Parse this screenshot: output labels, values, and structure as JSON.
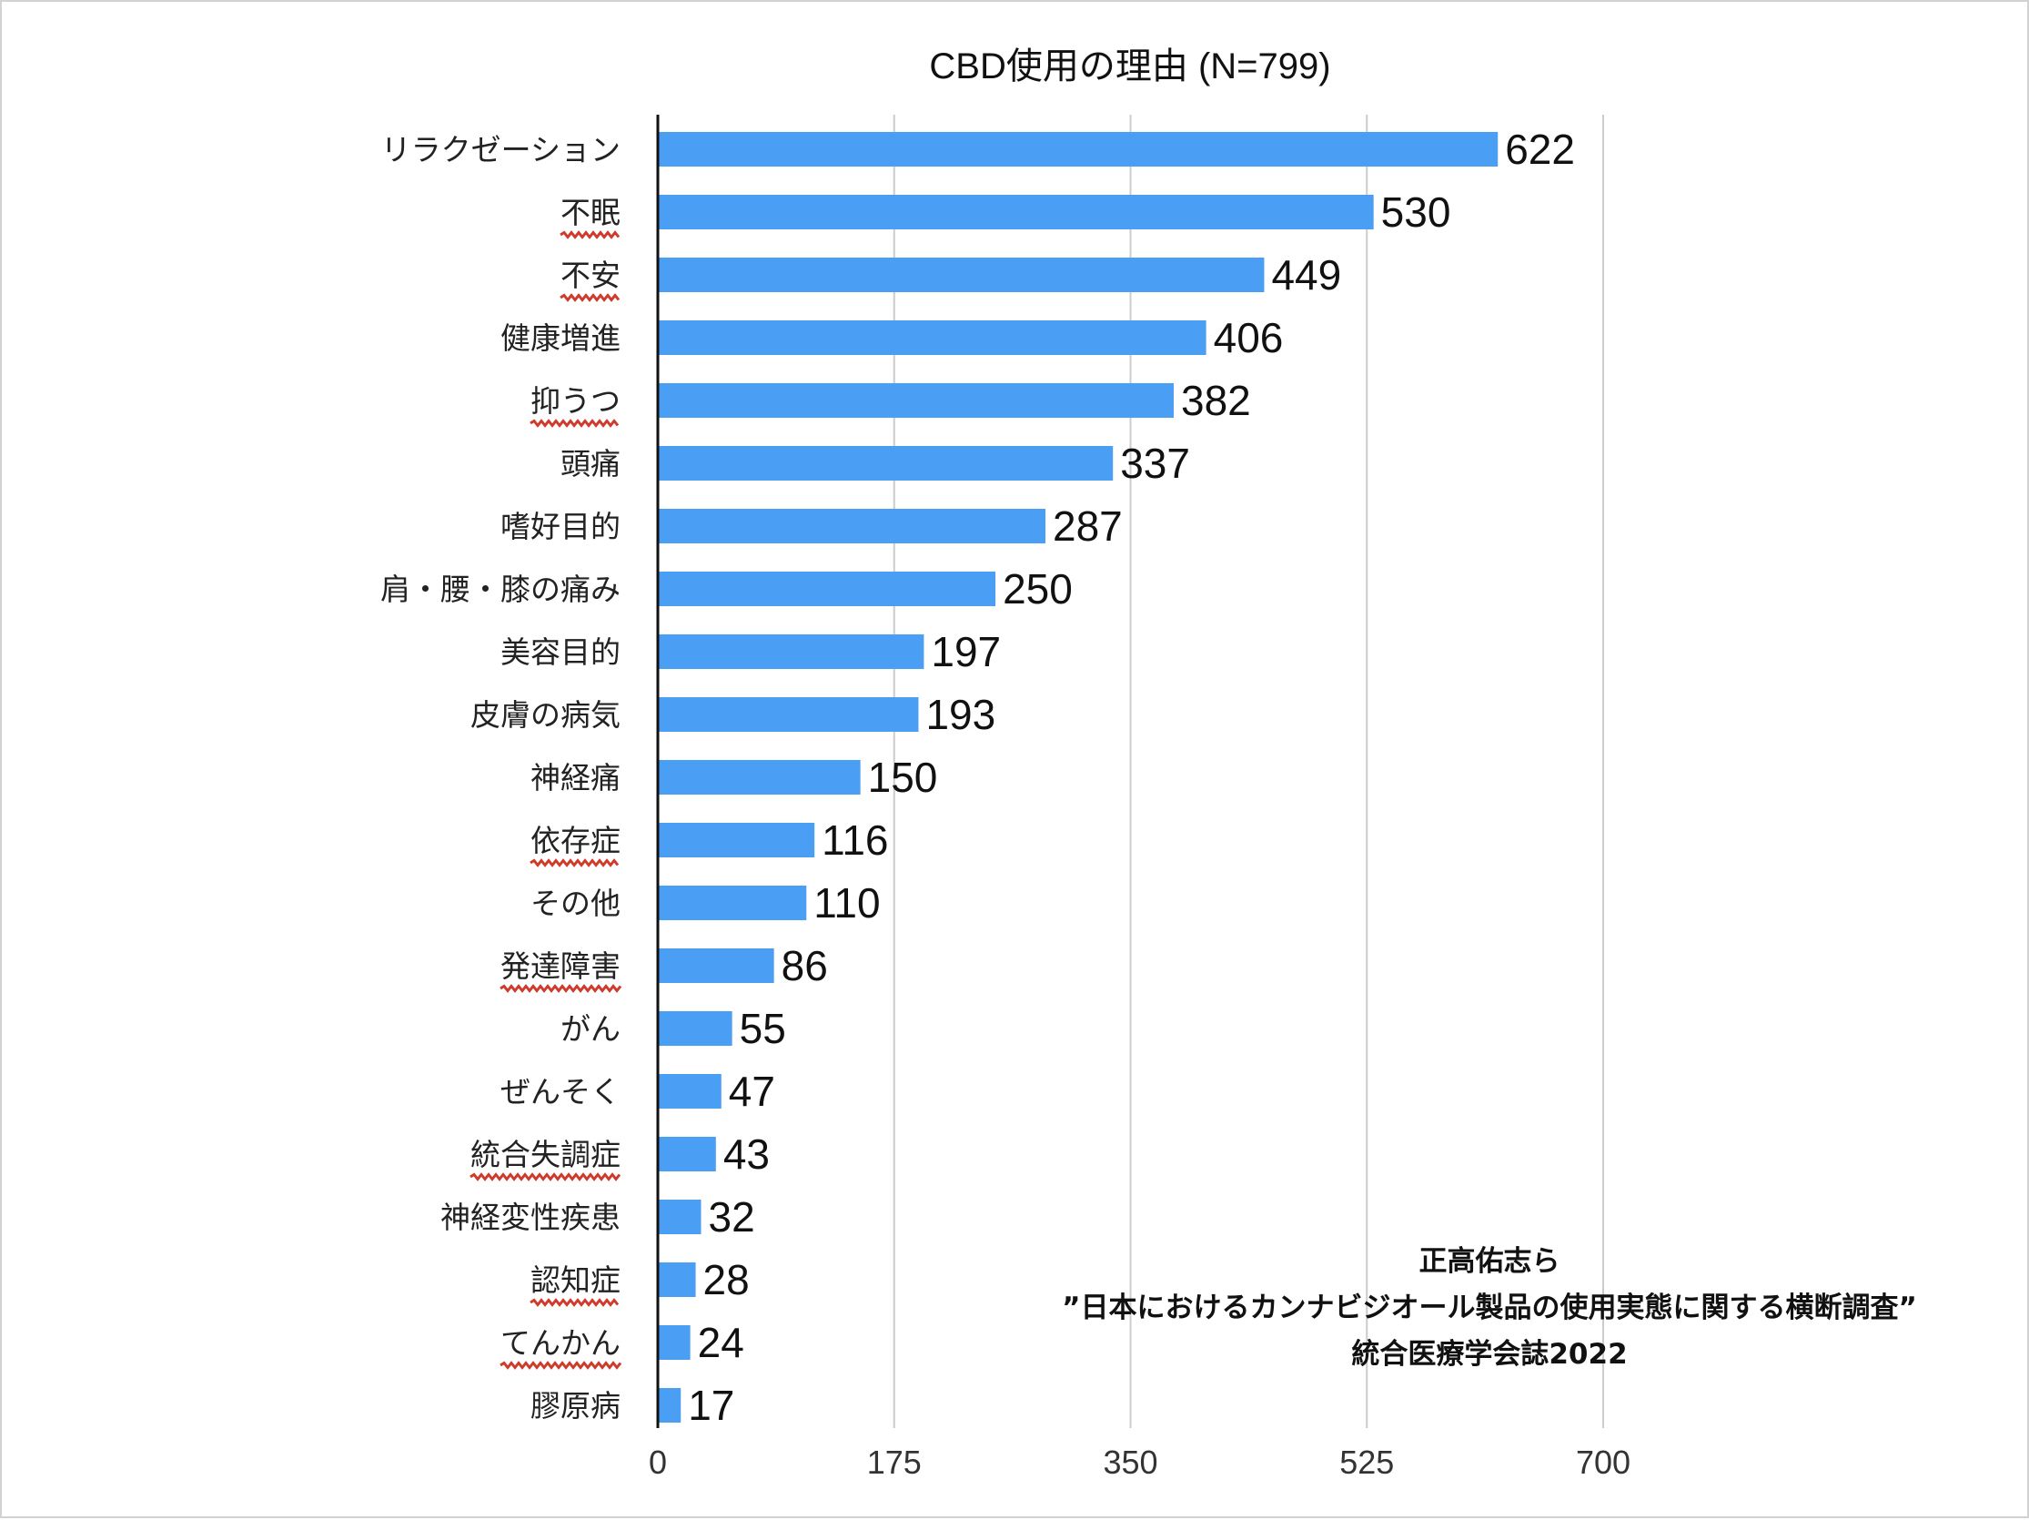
{
  "chart_data": {
    "type": "bar",
    "orientation": "horizontal",
    "title": "CBD使用の理由 (N=799)",
    "categories": [
      "リラクゼーション",
      "不眠",
      "不安",
      "健康増進",
      "抑うつ",
      "頭痛",
      "嗜好目的",
      "肩・腰・膝の痛み",
      "美容目的",
      "皮膚の病気",
      "神経痛",
      "依存症",
      "その他",
      "発達障害",
      "がん",
      "ぜんそく",
      "統合失調症",
      "神経変性疾患",
      "認知症",
      "てんかん",
      "膠原病"
    ],
    "values": [
      622,
      530,
      449,
      406,
      382,
      337,
      287,
      250,
      197,
      193,
      150,
      116,
      110,
      86,
      55,
      47,
      43,
      32,
      28,
      24,
      17
    ],
    "underlined_categories": [
      "不眠",
      "不安",
      "抑うつ",
      "依存症",
      "発達障害",
      "統合失調症",
      "認知症",
      "てんかん"
    ],
    "xticks": [
      0,
      175,
      350,
      525,
      700
    ],
    "xlim": [
      0,
      700
    ],
    "grid": true,
    "colors": {
      "bar": "#4a9ff5",
      "grid": "#cccccc",
      "axis": "#111111",
      "underline": "#d03a2b"
    },
    "annotation": {
      "line1": "正高佑志ら",
      "line2": "”日本におけるカンナビジオール製品の使用実態に関する横断調査”",
      "line3": "統合医療学会誌2022"
    }
  }
}
